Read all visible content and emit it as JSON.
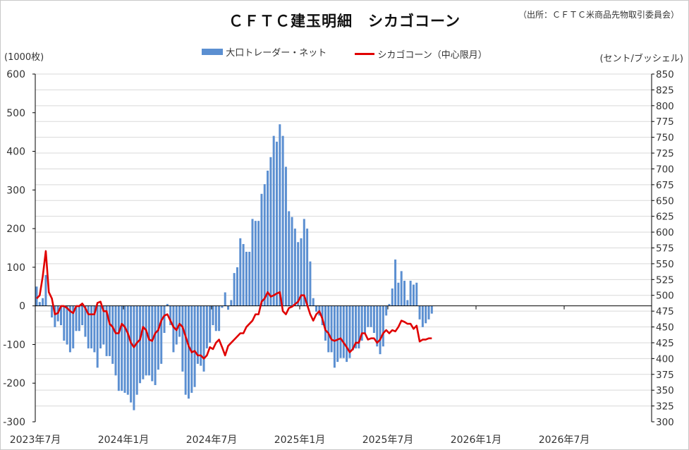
{
  "chart": {
    "title": "ＣＦＴＣ建玉明細　シカゴコーン",
    "source": "（出所：ＣＦＴＣ米商品先物取引委員会）",
    "left_unit": "(1000枚)",
    "right_unit": "(セント/ブッシェル)",
    "legend_bar": "大口トレーダー・ネット",
    "legend_line": "シカゴコーン（中心限月）"
  },
  "colors": {
    "bar": "#5b8fd1",
    "line": "#e00000",
    "grid": "#d9d9d9"
  },
  "chart_data": {
    "type": "bar+line",
    "x_start": "2023年7月",
    "x_tick_labels": [
      "2023年7月",
      "2024年1月",
      "2024年7月",
      "2025年1月",
      "2025年7月",
      "2026年1月",
      "2026年7月"
    ],
    "left_axis": {
      "ylim": [
        -300,
        600
      ],
      "ticks": [
        -300,
        -200,
        -100,
        0,
        100,
        200,
        300,
        400,
        500,
        600
      ]
    },
    "right_axis": {
      "ylim": [
        300,
        850
      ],
      "ticks": [
        300,
        325,
        350,
        375,
        400,
        425,
        450,
        475,
        500,
        525,
        550,
        575,
        600,
        625,
        650,
        675,
        700,
        725,
        750,
        775,
        800,
        825,
        850
      ]
    },
    "series": [
      {
        "name": "大口トレーダー・ネット",
        "kind": "bar",
        "axis": "left",
        "values": [
          50,
          10,
          20,
          80,
          0,
          -30,
          -55,
          -40,
          -50,
          -90,
          -100,
          -120,
          -110,
          -65,
          -65,
          -50,
          -80,
          -110,
          -110,
          -120,
          -160,
          -110,
          -100,
          -130,
          -130,
          -150,
          -180,
          -220,
          -220,
          -225,
          -230,
          -250,
          -270,
          -230,
          -200,
          -190,
          -180,
          -180,
          -195,
          -205,
          -165,
          -150,
          -70,
          5,
          -50,
          -120,
          -100,
          -80,
          -170,
          -230,
          -240,
          -225,
          -210,
          -150,
          -155,
          -170,
          -110,
          -95,
          -50,
          -65,
          -65,
          -5,
          35,
          -10,
          15,
          85,
          100,
          175,
          160,
          140,
          140,
          225,
          220,
          220,
          290,
          315,
          350,
          385,
          440,
          425,
          470,
          440,
          360,
          245,
          230,
          200,
          165,
          175,
          225,
          200,
          115,
          20,
          -15,
          -25,
          -50,
          -90,
          -120,
          -120,
          -160,
          -145,
          -135,
          -135,
          -145,
          -135,
          -115,
          -110,
          -110,
          -90,
          -70,
          -55,
          -55,
          -70,
          -105,
          -125,
          -105,
          -25,
          5,
          45,
          120,
          60,
          90,
          65,
          15,
          65,
          55,
          60,
          -35,
          -55,
          -45,
          -35,
          -20
        ]
      },
      {
        "name": "シカゴコーン（中心限月）",
        "kind": "line",
        "axis": "right",
        "values": [
          495,
          500,
          530,
          570,
          505,
          495,
          470,
          472,
          483,
          483,
          480,
          475,
          472,
          483,
          483,
          487,
          480,
          470,
          470,
          470,
          488,
          490,
          475,
          475,
          455,
          450,
          440,
          440,
          455,
          450,
          440,
          425,
          418,
          425,
          430,
          450,
          445,
          430,
          428,
          440,
          445,
          460,
          468,
          470,
          460,
          450,
          445,
          455,
          450,
          435,
          420,
          410,
          412,
          405,
          405,
          400,
          405,
          418,
          415,
          425,
          430,
          418,
          405,
          420,
          425,
          430,
          435,
          440,
          440,
          450,
          455,
          460,
          470,
          470,
          490,
          495,
          505,
          498,
          500,
          503,
          505,
          475,
          470,
          480,
          482,
          486,
          490,
          500,
          500,
          485,
          470,
          460,
          470,
          475,
          463,
          445,
          440,
          430,
          428,
          430,
          432,
          425,
          418,
          410,
          415,
          425,
          425,
          440,
          440,
          430,
          432,
          432,
          425,
          430,
          440,
          445,
          440,
          445,
          443,
          450,
          460,
          458,
          455,
          455,
          447,
          452,
          427,
          430,
          430,
          432,
          432
        ]
      }
    ]
  }
}
